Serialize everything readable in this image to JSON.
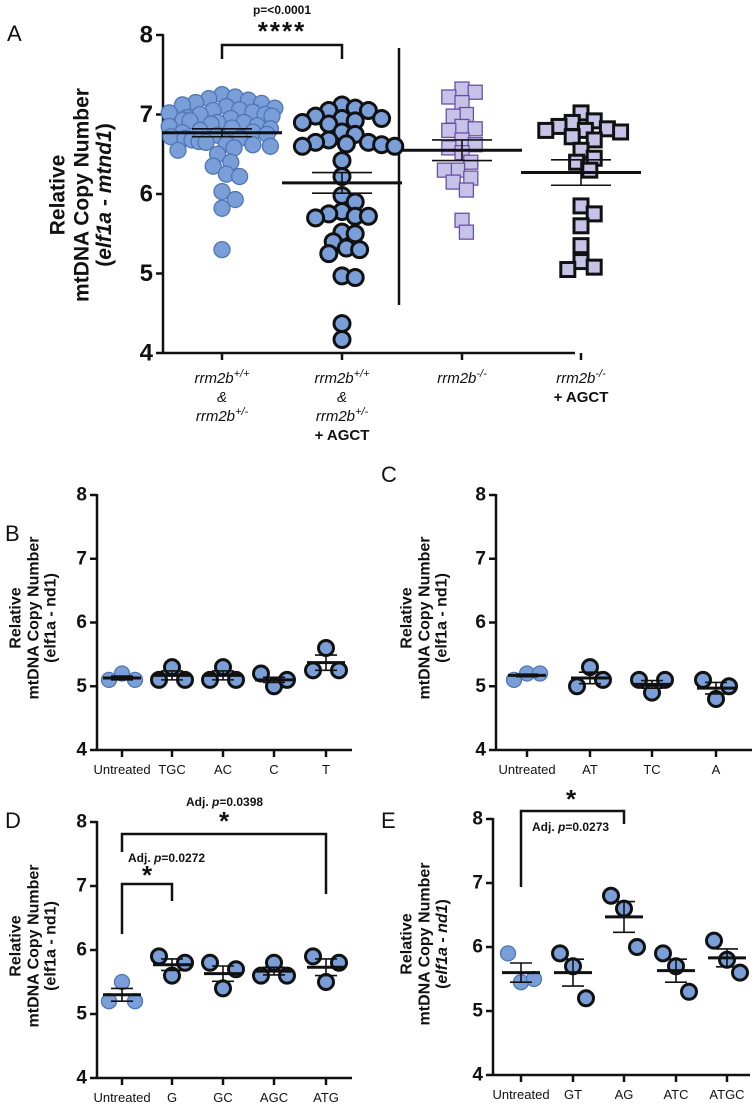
{
  "figure": {
    "colors": {
      "circle_fill": "#7a9fd8",
      "circle_stroke_light": "#4e76b5",
      "circle_stroke_dark": "#111111",
      "square_fill": "#c7c3e8",
      "square_stroke_light": "#6a4fa8",
      "square_stroke_dark": "#111111"
    }
  },
  "chart_data": [
    {
      "panel": "A",
      "type": "scatter",
      "title": "",
      "ylabel_lines": [
        "Relative",
        "mtDNA Copy Number",
        "(elf1a - mtnd1)"
      ],
      "ylabel_italic_parts": [
        "elf1a",
        "mtnd1"
      ],
      "ylim": [
        4,
        8
      ],
      "yticks": [
        4,
        5,
        6,
        7,
        8
      ],
      "grid": false,
      "divider_after_group": 2,
      "groups": [
        {
          "label_lines": [
            "rrm2b+/+",
            "&",
            "rrm2b+/-"
          ],
          "label_display": [
            {
              "text": "rrm2b",
              "sup": "+/+",
              "style": "italic"
            },
            {
              "text": "&",
              "sup": "",
              "style": "italic"
            },
            {
              "text": "rrm2b",
              "sup": "+/-",
              "style": "italic"
            }
          ],
          "marker": "circle",
          "outline": "light",
          "mean": 6.77,
          "sem": 0.05,
          "values": [
            7.25,
            7.22,
            7.2,
            7.18,
            7.15,
            7.14,
            7.12,
            7.1,
            7.08,
            7.06,
            7.05,
            7.03,
            7.02,
            7.0,
            7.0,
            6.98,
            6.96,
            6.95,
            6.93,
            6.92,
            6.9,
            6.9,
            6.88,
            6.86,
            6.85,
            6.83,
            6.82,
            6.8,
            6.78,
            6.77,
            6.75,
            6.74,
            6.72,
            6.7,
            6.7,
            6.68,
            6.66,
            6.65,
            6.63,
            6.62,
            6.6,
            6.58,
            6.55,
            6.5,
            6.4,
            6.35,
            6.25,
            6.22,
            6.03,
            5.93,
            5.82,
            5.3
          ]
        },
        {
          "label_lines": [
            "rrm2b+/+",
            "&",
            "rrm2b+/-",
            "+ AGCT"
          ],
          "label_display": [
            {
              "text": "rrm2b",
              "sup": "+/+",
              "style": "italic"
            },
            {
              "text": "&",
              "sup": "",
              "style": "italic"
            },
            {
              "text": "rrm2b",
              "sup": "+/-",
              "style": "italic"
            },
            {
              "text": "+ AGCT",
              "sup": "",
              "style": "bold"
            }
          ],
          "marker": "circle",
          "outline": "dark",
          "mean": 6.14,
          "sem": 0.13,
          "values": [
            7.12,
            7.08,
            7.05,
            7.05,
            6.98,
            6.95,
            6.95,
            6.92,
            6.9,
            6.88,
            6.78,
            6.75,
            6.68,
            6.65,
            6.65,
            6.63,
            6.62,
            6.6,
            6.6,
            6.42,
            6.22,
            5.98,
            5.9,
            5.78,
            5.75,
            5.72,
            5.72,
            5.7,
            5.52,
            5.5,
            5.4,
            5.32,
            5.3,
            5.25,
            4.97,
            4.95,
            4.37,
            4.17
          ]
        },
        {
          "label_lines": [
            "rrm2b-/-"
          ],
          "label_display": [
            {
              "text": "rrm2b",
              "sup": "-/-",
              "style": "italic"
            }
          ],
          "marker": "square",
          "outline": "light",
          "mean": 6.55,
          "sem": 0.13,
          "values": [
            7.32,
            7.28,
            7.22,
            7.15,
            7.0,
            6.98,
            6.85,
            6.82,
            6.8,
            6.68,
            6.62,
            6.58,
            6.52,
            6.4,
            6.3,
            6.3,
            6.2,
            6.15,
            6.05,
            5.67,
            5.52
          ]
        },
        {
          "label_lines": [
            "rrm2b-/-",
            "+ AGCT"
          ],
          "label_display": [
            {
              "text": "rrm2b",
              "sup": "-/-",
              "style": "italic"
            },
            {
              "text": "+ AGCT",
              "sup": "",
              "style": "bold"
            }
          ],
          "marker": "square",
          "outline": "dark",
          "mean": 6.27,
          "sem": 0.16,
          "values": [
            7.02,
            6.92,
            6.9,
            6.85,
            6.82,
            6.8,
            6.8,
            6.78,
            6.72,
            6.68,
            6.55,
            6.45,
            6.4,
            6.3,
            5.85,
            5.75,
            5.6,
            5.35,
            5.15,
            5.08,
            5.05
          ]
        }
      ],
      "annotations": [
        {
          "from_group": 0,
          "to_group": 1,
          "text": "p=<0.0001",
          "stars": "****"
        }
      ]
    },
    {
      "panel": "B",
      "type": "scatter",
      "ylabel_lines": [
        "Relative",
        "mtDNA Copy Number",
        "(elf1a - nd1)"
      ],
      "ylabel_italic_parts": [],
      "ylim": [
        4,
        8
      ],
      "yticks": [
        4,
        5,
        6,
        7,
        8
      ],
      "grid": false,
      "groups": [
        {
          "label": "Untreated",
          "outline": "light",
          "mean": 5.13,
          "sem": 0.03,
          "values": [
            5.1,
            5.2,
            5.1
          ]
        },
        {
          "label": "TGC",
          "outline": "dark",
          "mean": 5.17,
          "sem": 0.07,
          "values": [
            5.1,
            5.3,
            5.1
          ]
        },
        {
          "label": "AC",
          "outline": "dark",
          "mean": 5.17,
          "sem": 0.07,
          "values": [
            5.1,
            5.3,
            5.1
          ]
        },
        {
          "label": "C",
          "outline": "dark",
          "mean": 5.1,
          "sem": 0.04,
          "values": [
            5.2,
            5.0,
            5.1
          ]
        },
        {
          "label": "T",
          "outline": "dark",
          "mean": 5.37,
          "sem": 0.12,
          "values": [
            5.25,
            5.6,
            5.25
          ]
        }
      ],
      "annotations": []
    },
    {
      "panel": "C",
      "type": "scatter",
      "ylabel_lines": [
        "Relative",
        "mtDNA Copy Number",
        "(elf1a - nd1)"
      ],
      "ylabel_italic_parts": [],
      "ylim": [
        4,
        8
      ],
      "yticks": [
        4,
        5,
        6,
        7,
        8
      ],
      "grid": false,
      "groups": [
        {
          "label": "Untreated",
          "outline": "light",
          "mean": 5.17,
          "sem": 0.02,
          "values": [
            5.1,
            5.2,
            5.2
          ]
        },
        {
          "label": "AT",
          "outline": "dark",
          "mean": 5.13,
          "sem": 0.09,
          "values": [
            5.0,
            5.3,
            5.1
          ]
        },
        {
          "label": "TC",
          "outline": "dark",
          "mean": 5.03,
          "sem": 0.06,
          "values": [
            5.1,
            4.9,
            5.1
          ]
        },
        {
          "label": "A",
          "outline": "dark",
          "mean": 4.97,
          "sem": 0.09,
          "values": [
            5.1,
            4.8,
            5.0
          ]
        }
      ],
      "annotations": []
    },
    {
      "panel": "D",
      "type": "scatter",
      "ylabel_lines": [
        "Relative",
        "mtDNA Copy Number",
        "(elf1a - nd1)"
      ],
      "ylabel_italic_parts": [],
      "ylim": [
        4,
        8
      ],
      "yticks": [
        4,
        5,
        6,
        7,
        8
      ],
      "grid": false,
      "groups": [
        {
          "label": "Untreated",
          "outline": "light",
          "mean": 5.3,
          "sem": 0.1,
          "values": [
            5.2,
            5.5,
            5.2
          ]
        },
        {
          "label": "G",
          "outline": "dark",
          "mean": 5.77,
          "sem": 0.09,
          "values": [
            5.9,
            5.6,
            5.8
          ]
        },
        {
          "label": "GC",
          "outline": "dark",
          "mean": 5.63,
          "sem": 0.12,
          "values": [
            5.8,
            5.4,
            5.7
          ]
        },
        {
          "label": "AGC",
          "outline": "dark",
          "mean": 5.67,
          "sem": 0.06,
          "values": [
            5.6,
            5.8,
            5.6
          ]
        },
        {
          "label": "ATG",
          "outline": "dark",
          "mean": 5.73,
          "sem": 0.13,
          "values": [
            5.9,
            5.5,
            5.8
          ]
        }
      ],
      "annotations": [
        {
          "from_group": 0,
          "to_group": 1,
          "text_prefix": "Adj. ",
          "text_italic": "p",
          "text_suffix": "=0.0272",
          "stars": "*"
        },
        {
          "from_group": 0,
          "to_group": 4,
          "text_prefix": "Adj. ",
          "text_italic": "p",
          "text_suffix": "=0.0398",
          "stars": "*"
        }
      ]
    },
    {
      "panel": "E",
      "type": "scatter",
      "ylabel_lines": [
        "Relative",
        "mtDNA Copy Number",
        "(elf1a - nd1)"
      ],
      "ylabel_italic_parts": [
        "elf1a",
        "nd1"
      ],
      "ylim": [
        4,
        8
      ],
      "yticks": [
        4,
        5,
        6,
        7,
        8
      ],
      "grid": false,
      "groups": [
        {
          "label": "Untreated",
          "outline": "light",
          "mean": 5.6,
          "sem": 0.15,
          "values": [
            5.9,
            5.45,
            5.5
          ]
        },
        {
          "label": "GT",
          "outline": "dark",
          "mean": 5.6,
          "sem": 0.21,
          "values": [
            5.9,
            5.7,
            5.2
          ]
        },
        {
          "label": "AG",
          "outline": "dark",
          "mean": 6.47,
          "sem": 0.24,
          "values": [
            6.8,
            6.6,
            6.0
          ]
        },
        {
          "label": "ATC",
          "outline": "dark",
          "mean": 5.63,
          "sem": 0.18,
          "values": [
            5.9,
            5.7,
            5.3
          ]
        },
        {
          "label": "ATGC",
          "outline": "dark",
          "mean": 5.83,
          "sem": 0.14,
          "values": [
            6.1,
            5.8,
            5.6
          ]
        }
      ],
      "annotations": [
        {
          "from_group": 0,
          "to_group": 2,
          "text_prefix": "Adj. ",
          "text_italic": "p",
          "text_suffix": "=0.0273",
          "stars": "*"
        }
      ]
    }
  ]
}
